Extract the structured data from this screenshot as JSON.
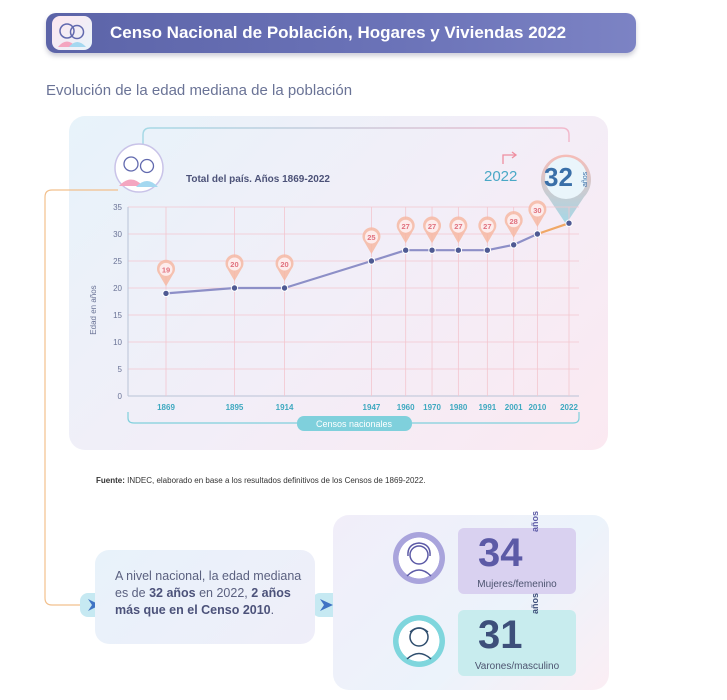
{
  "header": {
    "title": "Censo Nacional de Población, Hogares y Viviendas 2022"
  },
  "subtitle": "Evolución de la edad mediana de la población",
  "chart_data": {
    "type": "line",
    "title": "Total del país. Años 1869-2022",
    "xlabel": "Censos nacionales",
    "ylabel": "Edad en años",
    "ylim": [
      0,
      35
    ],
    "yticks": [
      "0",
      "5",
      "10",
      "15",
      "20",
      "25",
      "30",
      "35"
    ],
    "categories": [
      "1869",
      "1895",
      "1914",
      "1947",
      "1960",
      "1970",
      "1980",
      "1991",
      "2001",
      "2010",
      "2022"
    ],
    "x": [
      1869,
      1895,
      1914,
      1947,
      1960,
      1970,
      1980,
      1991,
      2001,
      2010,
      2022
    ],
    "values": [
      19,
      20,
      20,
      25,
      27,
      27,
      27,
      27,
      28,
      30,
      32
    ],
    "highlight": {
      "year": "2022",
      "value": "32",
      "unit": "años"
    },
    "grid": true,
    "colors": {
      "line": "#8d8fc7",
      "line_last": "#f0a866",
      "point": "#4f5a93",
      "pin": "#f6b8a3"
    }
  },
  "source": {
    "label": "Fuente:",
    "text": " INDEC, elaborado en base a los resultados definitivos de los Censos de 1869-2022."
  },
  "summary": {
    "line1": "A nivel nacional, la edad mediana es de ",
    "bold1": "32 años",
    "line2": " en 2022, ",
    "bold2": "2 años más que en el Censo 2010",
    "line3": "."
  },
  "stats": [
    {
      "value": "34",
      "unit": "años",
      "label": "Mujeres/femenino",
      "icon": "woman-icon"
    },
    {
      "value": "31",
      "unit": "años",
      "label": "Varones/masculino",
      "icon": "man-icon"
    }
  ],
  "colors": {
    "banner": "#6169ae",
    "accent_teal": "#49b7c4",
    "accent_purple": "#7b6fc0"
  }
}
